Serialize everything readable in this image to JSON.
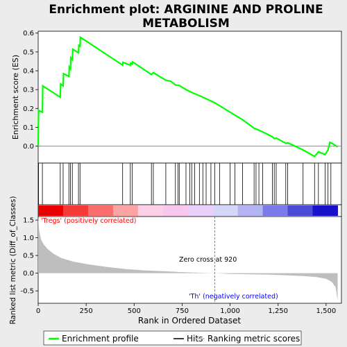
{
  "title_line1": "Enrichment plot: ARGININE AND PROLINE",
  "title_line2": "METABOLISM",
  "chart_data": {
    "type": "line",
    "xlabel": "Rank in Ordered Dataset",
    "ylabel_top": "Enrichment score (ES)",
    "ylabel_bottom": "Ranked list metric (Diff_of_Classes)",
    "xlim": [
      0,
      1580
    ],
    "x_ticks": [
      "0",
      "250",
      "500",
      "750",
      "1,000",
      "1,250",
      "1,500"
    ],
    "x_tick_values": [
      0,
      250,
      500,
      750,
      1000,
      1250,
      1500
    ],
    "es_ylim": [
      -0.09,
      0.61
    ],
    "es_y_ticks": [
      "0.0",
      "0.1",
      "0.2",
      "0.3",
      "0.4",
      "0.5",
      "0.6"
    ],
    "es_y_tick_values": [
      0,
      0.1,
      0.2,
      0.3,
      0.4,
      0.5,
      0.6
    ],
    "metric_ylim": [
      -0.85,
      1.6
    ],
    "metric_y_ticks": [
      "-0.5",
      "0.0",
      "0.5",
      "1.0",
      "1.5"
    ],
    "metric_y_tick_values": [
      -0.5,
      0,
      0.5,
      1,
      1.5
    ],
    "hits": [
      2,
      22,
      115,
      130,
      160,
      168,
      178,
      210,
      218,
      440,
      480,
      490,
      590,
      600,
      665,
      715,
      728,
      735,
      770,
      790,
      800,
      815,
      840,
      858,
      875,
      900,
      920,
      945,
      1000,
      1025,
      1065,
      1125,
      1135,
      1150,
      1170,
      1220,
      1230,
      1240,
      1290,
      1300,
      1380,
      1440,
      1460,
      1495,
      1510,
      1525
    ],
    "es_curve": [
      [
        0,
        0.0
      ],
      [
        2,
        0.19
      ],
      [
        22,
        0.18
      ],
      [
        24,
        0.32
      ],
      [
        115,
        0.26
      ],
      [
        117,
        0.33
      ],
      [
        130,
        0.32
      ],
      [
        132,
        0.385
      ],
      [
        160,
        0.37
      ],
      [
        162,
        0.42
      ],
      [
        168,
        0.41
      ],
      [
        170,
        0.47
      ],
      [
        178,
        0.46
      ],
      [
        180,
        0.515
      ],
      [
        210,
        0.495
      ],
      [
        212,
        0.535
      ],
      [
        218,
        0.53
      ],
      [
        220,
        0.578
      ],
      [
        440,
        0.43
      ],
      [
        442,
        0.445
      ],
      [
        480,
        0.43
      ],
      [
        482,
        0.44
      ],
      [
        490,
        0.435
      ],
      [
        492,
        0.447
      ],
      [
        590,
        0.38
      ],
      [
        600,
        0.39
      ],
      [
        665,
        0.35
      ],
      [
        690,
        0.345
      ],
      [
        715,
        0.325
      ],
      [
        735,
        0.322
      ],
      [
        770,
        0.3
      ],
      [
        800,
        0.285
      ],
      [
        858,
        0.26
      ],
      [
        920,
        0.23
      ],
      [
        1000,
        0.18
      ],
      [
        1065,
        0.14
      ],
      [
        1125,
        0.095
      ],
      [
        1150,
        0.085
      ],
      [
        1170,
        0.075
      ],
      [
        1220,
        0.05
      ],
      [
        1230,
        0.04
      ],
      [
        1240,
        0.043
      ],
      [
        1290,
        0.015
      ],
      [
        1300,
        0.018
      ],
      [
        1380,
        -0.02
      ],
      [
        1440,
        -0.055
      ],
      [
        1460,
        -0.03
      ],
      [
        1495,
        -0.045
      ],
      [
        1510,
        -0.02
      ],
      [
        1520,
        0.02
      ],
      [
        1540,
        0.01
      ],
      [
        1560,
        -0.005
      ]
    ],
    "metric_curve": [
      [
        0,
        1.6
      ],
      [
        5,
        1.2
      ],
      [
        15,
        0.95
      ],
      [
        30,
        0.8
      ],
      [
        50,
        0.68
      ],
      [
        80,
        0.55
      ],
      [
        120,
        0.43
      ],
      [
        180,
        0.33
      ],
      [
        250,
        0.26
      ],
      [
        350,
        0.18
      ],
      [
        450,
        0.12
      ],
      [
        550,
        0.08
      ],
      [
        650,
        0.055
      ],
      [
        750,
        0.03
      ],
      [
        850,
        0.012
      ],
      [
        920,
        0.0
      ],
      [
        1000,
        -0.02
      ],
      [
        1100,
        -0.03
      ],
      [
        1200,
        -0.04
      ],
      [
        1300,
        -0.06
      ],
      [
        1380,
        -0.08
      ],
      [
        1450,
        -0.11
      ],
      [
        1500,
        -0.16
      ],
      [
        1530,
        -0.25
      ],
      [
        1550,
        -0.4
      ],
      [
        1560,
        -0.77
      ]
    ],
    "zero_cross_rank": 920,
    "zero_cross_label": "Zero cross at 920",
    "pos_label": "'Tregs' (positively correlated)",
    "neg_label": "'Th' (negatively correlated)",
    "legend": [
      "Enrichment profile",
      "Hits",
      "Ranking metric scores"
    ],
    "colors": {
      "es_line": "#00ff00",
      "hit": "#000000",
      "metric_fill": "#bebebe",
      "zero_cross": "#808080",
      "pos_label": "#ff0000",
      "neg_label": "#0000ff",
      "panel_bg": "#ffffff",
      "page_bg": "#ececec"
    },
    "heat_colors": [
      "#e80000",
      "#f53a3a",
      "#f96d6d",
      "#fca3a3",
      "#fdd0e8",
      "#f6c8ee",
      "#e8d0f8",
      "#d6d6fa",
      "#b4b4f4",
      "#7a7ae8",
      "#4a4ad8",
      "#1a12c8"
    ]
  }
}
